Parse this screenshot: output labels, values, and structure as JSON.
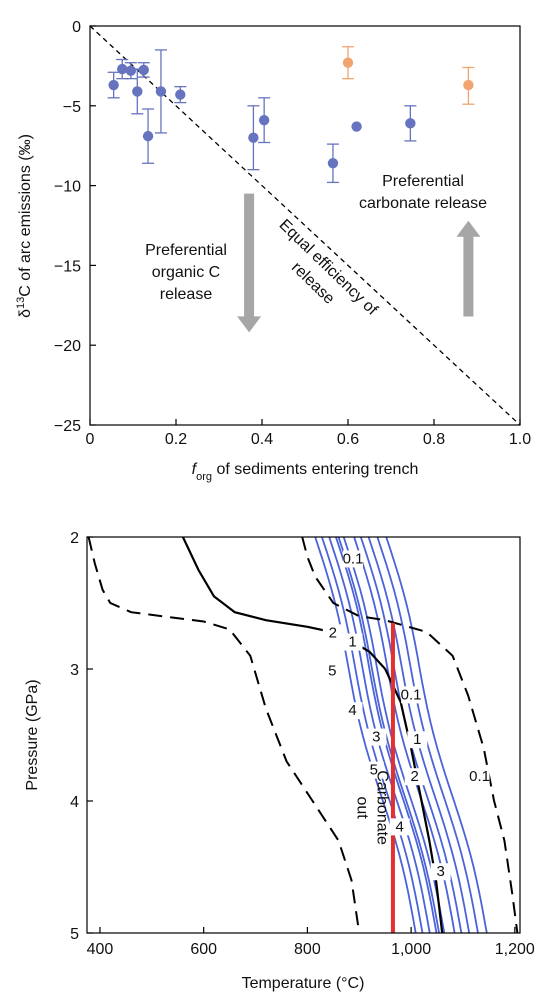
{
  "chart_data": [
    {
      "type": "scatter",
      "title": "",
      "xlabel_main": "f",
      "xlabel_sub": "org",
      "xlabel_rest": " of sediments entering trench",
      "ylabel_pre": "δ",
      "ylabel_sup": "13",
      "ylabel_rest": "C of arc emissions (‰)",
      "xlim": [
        0,
        1.0
      ],
      "ylim": [
        -25,
        0
      ],
      "xticks": [
        0,
        0.2,
        0.4,
        0.6,
        0.8,
        1.0
      ],
      "xtick_labels": [
        "0",
        "0.2",
        "0.4",
        "0.6",
        "0.8",
        "1.0"
      ],
      "yticks": [
        0,
        -5,
        -10,
        -15,
        -20,
        -25
      ],
      "ytick_labels": [
        "0",
        "−5",
        "−10",
        "−15",
        "−20",
        "−25"
      ],
      "grid": false,
      "series": [
        {
          "color": "#6674bf",
          "points": [
            {
              "x": 0.055,
              "y": -3.7,
              "lo": -4.5,
              "hi": -2.9
            },
            {
              "x": 0.075,
              "y": -2.7,
              "lo": -3.3,
              "hi": -2.1
            },
            {
              "x": 0.095,
              "y": -2.8,
              "lo": -3.3,
              "hi": -2.3
            },
            {
              "x": 0.11,
              "y": -4.1,
              "lo": -5.5,
              "hi": -2.7
            },
            {
              "x": 0.125,
              "y": -2.75,
              "lo": -3.2,
              "hi": -2.3
            },
            {
              "x": 0.135,
              "y": -6.9,
              "lo": -8.6,
              "hi": -5.2
            },
            {
              "x": 0.165,
              "y": -4.1,
              "lo": -6.7,
              "hi": -1.5
            },
            {
              "x": 0.21,
              "y": -4.3,
              "lo": -4.8,
              "hi": -3.8
            },
            {
              "x": 0.38,
              "y": -7.0,
              "lo": -9.0,
              "hi": -5.0
            },
            {
              "x": 0.405,
              "y": -5.9,
              "lo": -7.3,
              "hi": -4.5
            },
            {
              "x": 0.565,
              "y": -8.6,
              "lo": -9.8,
              "hi": -7.4
            },
            {
              "x": 0.62,
              "y": -6.3
            },
            {
              "x": 0.745,
              "y": -6.1,
              "lo": -7.2,
              "hi": -5.0
            }
          ]
        },
        {
          "color": "#f0a46f",
          "points": [
            {
              "x": 0.6,
              "y": -2.3,
              "lo": -3.3,
              "hi": -1.3
            },
            {
              "x": 0.88,
              "y": -3.7,
              "lo": -4.9,
              "hi": -2.6
            }
          ]
        }
      ],
      "reference_line": {
        "label_line1": "Equal efficiency of",
        "label_line2": "release",
        "from": [
          0,
          0
        ],
        "to": [
          1.0,
          -25
        ]
      },
      "annotations": {
        "organic_line1": "Preferential",
        "organic_line2": "organic C",
        "organic_line3": "release",
        "carbonate_line1": "Preferential",
        "carbonate_line2": "carbonate release"
      },
      "arrows": [
        {
          "direction": "down",
          "x": 0.37,
          "y_from": -10.5,
          "y_to": -19.2
        },
        {
          "direction": "up",
          "x": 0.88,
          "y_from": -18.2,
          "y_to": -12.2
        }
      ]
    },
    {
      "type": "line",
      "title": "",
      "xlabel": "Temperature (°C)",
      "ylabel": "Pressure (GPa)",
      "xlim": [
        375,
        1210
      ],
      "ylim": [
        2,
        5
      ],
      "y_inverted": true,
      "xticks": [
        400,
        600,
        800,
        1000,
        1200
      ],
      "xtick_labels": [
        "400",
        "600",
        "800",
        "1,000",
        "1,200"
      ],
      "yticks": [
        2,
        3,
        4,
        5
      ],
      "ytick_labels": [
        "2",
        "3",
        "4",
        "5"
      ],
      "grid": false,
      "solid_boundary": {
        "points": [
          [
            560,
            2.0
          ],
          [
            590,
            2.25
          ],
          [
            620,
            2.45
          ],
          [
            660,
            2.57
          ],
          [
            720,
            2.63
          ],
          [
            800,
            2.68
          ],
          [
            860,
            2.73
          ],
          [
            920,
            2.87
          ],
          [
            950,
            3.0
          ],
          [
            980,
            3.25
          ],
          [
            1000,
            3.6
          ],
          [
            1020,
            4.0
          ],
          [
            1035,
            4.3
          ],
          [
            1048,
            4.6
          ],
          [
            1060,
            5.0
          ]
        ]
      },
      "dashed_boundaries": [
        {
          "points": [
            [
              378,
              2.0
            ],
            [
              390,
              2.2
            ],
            [
              405,
              2.4
            ],
            [
              420,
              2.5
            ],
            [
              460,
              2.57
            ],
            [
              520,
              2.6
            ],
            [
              600,
              2.64
            ],
            [
              650,
              2.7
            ],
            [
              690,
              2.9
            ],
            [
              720,
              3.3
            ],
            [
              760,
              3.7
            ],
            [
              810,
              4.0
            ],
            [
              860,
              4.3
            ],
            [
              885,
              4.6
            ],
            [
              900,
              5.0
            ]
          ]
        },
        {
          "points": [
            [
              790,
              2.0
            ],
            [
              800,
              2.15
            ],
            [
              815,
              2.3
            ],
            [
              850,
              2.5
            ],
            [
              900,
              2.6
            ],
            [
              950,
              2.63
            ],
            [
              1030,
              2.72
            ],
            [
              1080,
              2.9
            ],
            [
              1110,
              3.2
            ],
            [
              1140,
              3.6
            ],
            [
              1160,
              4.0
            ],
            [
              1180,
              4.3
            ],
            [
              1195,
              4.7
            ],
            [
              1205,
              5.0
            ]
          ]
        }
      ],
      "isopleths_color": "#4b63d8",
      "isopleths": [
        {
          "label": "0.1",
          "t_at_2gpa": 870
        },
        {
          "label": "1",
          "t_at_2gpa": 855
        },
        {
          "label": "2",
          "t_at_2gpa": 842
        },
        {
          "label": "5",
          "t_at_2gpa": 828
        },
        {
          "label": "0.1",
          "t_at_2gpa": 815
        },
        {
          "label": "4",
          "t_at_2gpa": 860
        },
        {
          "label": "3",
          "t_at_2gpa": 890
        },
        {
          "label": "5",
          "t_at_2gpa": 903
        },
        {
          "label": "2",
          "t_at_2gpa": 918
        },
        {
          "label": "1",
          "t_at_2gpa": 935
        },
        {
          "label": "0.1",
          "t_at_2gpa": 952
        }
      ],
      "isopleth_labels": [
        {
          "text": "0.1",
          "T": 888,
          "P": 2.2
        },
        {
          "text": "2",
          "T": 849,
          "P": 2.76
        },
        {
          "text": "1",
          "T": 887,
          "P": 2.83
        },
        {
          "text": "5",
          "T": 848,
          "P": 3.05
        },
        {
          "text": "0.1",
          "T": 1000,
          "P": 3.23
        },
        {
          "text": "4",
          "T": 887,
          "P": 3.35
        },
        {
          "text": "3",
          "T": 933,
          "P": 3.55
        },
        {
          "text": "1",
          "T": 1012,
          "P": 3.57
        },
        {
          "text": "5",
          "T": 928,
          "P": 3.8
        },
        {
          "text": "2",
          "T": 1007,
          "P": 3.85
        },
        {
          "text": "0.1",
          "T": 1132,
          "P": 3.85
        },
        {
          "text": "4",
          "T": 978,
          "P": 4.23
        },
        {
          "text": "3",
          "T": 1057,
          "P": 4.57
        }
      ],
      "red_line": {
        "T": 965,
        "P_top": 2.65,
        "P_bottom": 5.0,
        "color": "#e53030"
      },
      "vertical_labels": [
        {
          "text": "Carbonate",
          "T": 935,
          "P": 4.05
        },
        {
          "text": "out",
          "T": 897,
          "P": 4.05
        }
      ]
    }
  ]
}
